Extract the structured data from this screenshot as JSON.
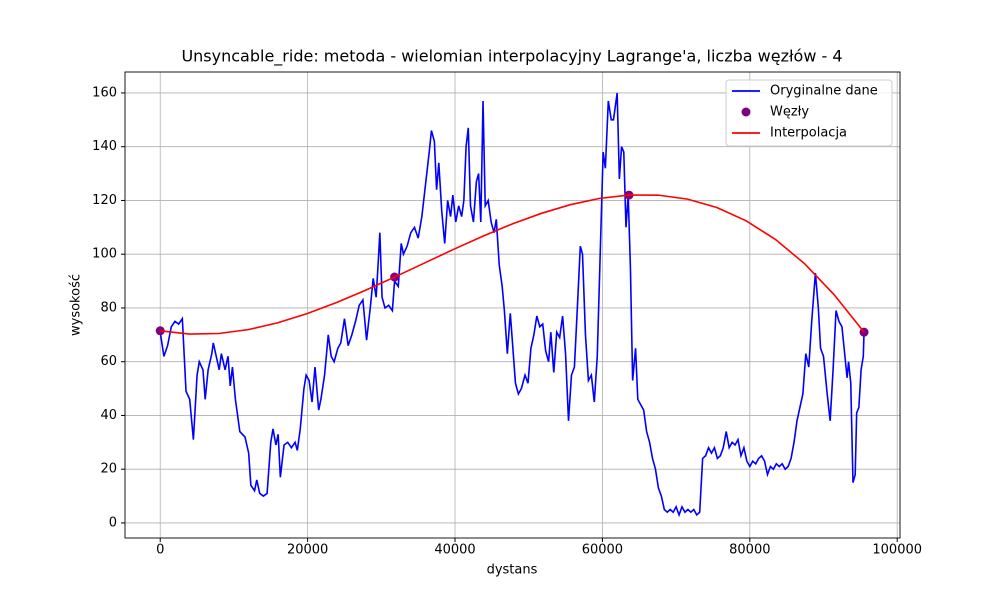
{
  "chart_data": {
    "type": "line",
    "title": "Unsyncable_ride: metoda - wielomian interpolacyjny Lagrange'a, liczba węzłów - 4",
    "xlabel": "dystans",
    "ylabel": "wysokość",
    "xlim": [
      -4780,
      100380
    ],
    "ylim": [
      -5.6,
      167.8
    ],
    "xticks": [
      0,
      20000,
      40000,
      60000,
      80000,
      100000
    ],
    "yticks": [
      0,
      20,
      40,
      60,
      80,
      100,
      120,
      140,
      160
    ],
    "grid": true,
    "legend": "upper right",
    "series": [
      {
        "name": "Oryginalne dane",
        "color": "#0000ff",
        "type": "line",
        "x": [
          0,
          500,
          1000,
          1500,
          2000,
          2500,
          3000,
          3500,
          4000,
          4500,
          5000,
          5300,
          5800,
          6100,
          6500,
          7000,
          7200,
          7600,
          8000,
          8300,
          8800,
          9200,
          9500,
          9800,
          10200,
          10800,
          11500,
          12000,
          12300,
          12800,
          13100,
          13500,
          14000,
          14500,
          15000,
          15300,
          15700,
          16000,
          16300,
          16800,
          17300,
          17800,
          18300,
          18600,
          19000,
          19500,
          19800,
          20200,
          20600,
          21000,
          21500,
          21800,
          22300,
          22800,
          23200,
          23600,
          24100,
          24500,
          25000,
          25500,
          26000,
          26500,
          27000,
          27500,
          28000,
          28500,
          28900,
          29300,
          29600,
          29800,
          30100,
          30500,
          31000,
          31500,
          31800,
          32300,
          32700,
          33000,
          33500,
          34000,
          34500,
          35000,
          35500,
          36000,
          36500,
          36800,
          37200,
          37500,
          37800,
          38200,
          38600,
          39000,
          39400,
          39700,
          40100,
          40500,
          40900,
          41200,
          41500,
          41800,
          42100,
          42500,
          42900,
          43200,
          43500,
          43800,
          44100,
          44500,
          44900,
          45300,
          45600,
          46000,
          46400,
          46700,
          47100,
          47500,
          47800,
          48200,
          48600,
          49000,
          49500,
          49900,
          50300,
          50700,
          51100,
          51500,
          51900,
          52300,
          52700,
          53000,
          53400,
          53800,
          54200,
          54600,
          55000,
          55400,
          55800,
          56200,
          56600,
          57000,
          57300,
          57700,
          58100,
          58500,
          58900,
          59300,
          59700,
          60100,
          60400,
          60800,
          61200,
          61500,
          62000,
          62300,
          62600,
          62900,
          63200,
          63500,
          63800,
          64100,
          64500,
          64800,
          65200,
          65600,
          66000,
          66400,
          66800,
          67200,
          67600,
          68000,
          68400,
          68800,
          69200,
          69600,
          70000,
          70400,
          70800,
          71200,
          71600,
          72000,
          72400,
          72800,
          73200,
          73600,
          74000,
          74400,
          74800,
          75200,
          75600,
          76000,
          76400,
          76800,
          77200,
          77600,
          78000,
          78400,
          78800,
          79200,
          79600,
          80000,
          80400,
          80800,
          81200,
          81600,
          82000,
          82400,
          82800,
          83200,
          83600,
          84000,
          84400,
          84800,
          85200,
          85600,
          86000,
          86400,
          86800,
          87200,
          87600,
          88000,
          88400,
          88900,
          89300,
          89600,
          90000,
          90500,
          90900,
          91300,
          91700,
          92100,
          92500,
          92800,
          93200,
          93400,
          93700,
          94000,
          94300,
          94500,
          94800,
          95100,
          95400,
          95500
        ],
        "values": [
          71,
          62,
          66,
          73,
          75,
          74,
          76,
          49,
          46,
          31,
          55,
          60,
          57,
          46,
          57,
          63,
          67,
          62,
          57,
          63,
          57,
          62,
          51,
          58,
          46,
          34,
          32,
          26,
          14,
          12,
          16,
          11,
          10,
          11,
          30,
          35,
          29,
          33,
          17,
          29,
          30,
          28,
          30,
          27,
          35,
          50,
          55,
          53,
          45,
          58,
          42,
          46,
          55,
          70,
          62,
          60,
          65,
          67,
          76,
          66,
          70,
          75,
          81,
          83,
          68,
          80,
          91,
          84,
          98,
          108,
          84,
          80,
          81,
          79,
          90,
          88,
          104,
          100,
          103,
          108,
          110,
          106,
          114,
          126,
          138,
          146,
          142,
          124,
          134,
          116,
          104,
          120,
          114,
          122,
          112,
          118,
          114,
          120,
          140,
          147,
          118,
          112,
          127,
          130,
          112,
          157,
          118,
          120,
          112,
          108,
          113,
          96,
          88,
          79,
          63,
          78,
          67,
          52,
          48,
          50,
          55,
          52,
          65,
          70,
          77,
          73,
          74,
          64,
          60,
          71,
          56,
          71,
          69,
          77,
          63,
          38,
          55,
          58,
          80,
          103,
          100,
          70,
          53,
          55,
          45,
          62,
          100,
          138,
          132,
          157,
          150,
          150,
          160,
          128,
          140,
          138,
          110,
          122,
          95,
          53,
          65,
          46,
          44,
          42,
          34,
          30,
          24,
          20,
          13,
          10,
          5,
          4,
          5,
          4,
          6,
          3,
          6,
          4,
          5,
          4,
          5,
          3,
          4,
          24,
          25,
          28,
          26,
          28,
          24,
          25,
          28,
          34,
          28,
          30,
          29,
          31,
          25,
          28,
          23,
          21,
          23,
          22,
          24,
          25,
          23,
          18,
          21,
          20,
          22,
          21,
          22,
          20,
          21,
          24,
          30,
          38,
          43,
          48,
          63,
          58,
          75,
          93,
          80,
          65,
          62,
          48,
          38,
          57,
          79,
          75,
          73,
          65,
          54,
          60,
          52,
          15,
          18,
          41,
          43,
          57,
          62,
          71
        ]
      },
      {
        "name": "Węzły",
        "color": "#800080",
        "type": "scatter",
        "x": [
          0,
          31800,
          63600,
          95500
        ],
        "values": [
          71.5,
          91.5,
          122,
          71
        ]
      },
      {
        "name": "Interpolacja",
        "color": "#ff0000",
        "type": "line",
        "x": [
          0,
          3975,
          7950,
          11925,
          15900,
          19875,
          23850,
          27825,
          31800,
          35775,
          39750,
          43725,
          47700,
          51675,
          55650,
          59625,
          63600,
          67575,
          71550,
          75525,
          79500,
          83475,
          87450,
          91425,
          95500
        ],
        "values": [
          71.5,
          70.29,
          70.49,
          71.93,
          74.44,
          77.83,
          81.93,
          86.54,
          91.5,
          96.62,
          101.73,
          106.64,
          111.19,
          115.17,
          118.42,
          120.77,
          122,
          121.98,
          120.49,
          117.37,
          112.44,
          105.51,
          96.43,
          84.99,
          71
        ]
      }
    ]
  }
}
